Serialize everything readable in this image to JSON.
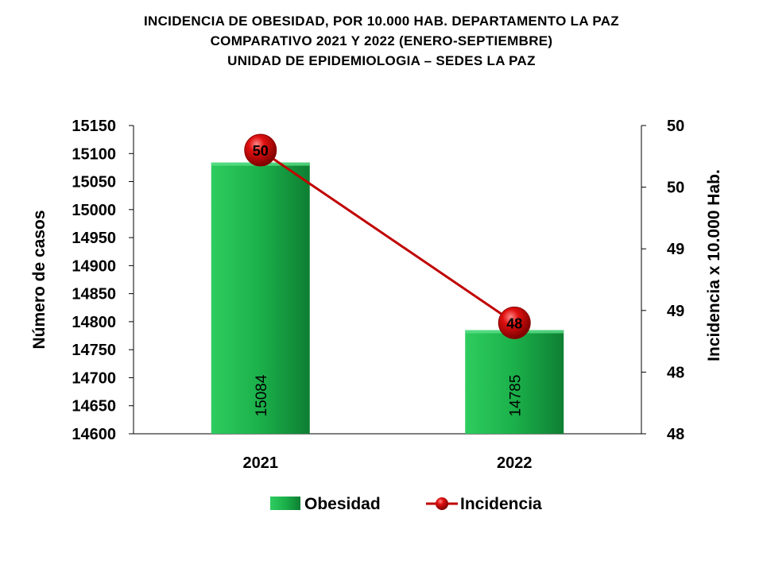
{
  "chart_data": {
    "type": "bar",
    "title": [
      "INCIDENCIA  DE OBESIDAD,  POR 10.000 HAB. DEPARTAMENTO  LA PAZ",
      "COMPARATIVO  2021 Y 2022 (ENERO-SEPTIEMBRE)",
      "UNIDAD DE EPIDEMIOLOGIA – SEDES LA PAZ"
    ],
    "categories": [
      "2021",
      "2022"
    ],
    "series": [
      {
        "name": "Obesidad",
        "type": "bar",
        "axis": "left",
        "color": "#1fa64a",
        "values": [
          15084,
          14785
        ],
        "labels": [
          "15084",
          "14785"
        ]
      },
      {
        "name": "Incidencia",
        "type": "line",
        "axis": "right",
        "color": "#c00000",
        "values": [
          49.8,
          48.4
        ],
        "labels": [
          "50",
          "48"
        ]
      }
    ],
    "ylabel": "Número de casos",
    "y2label": "Incidencia x 10.000 Hab.",
    "ylim": [
      14600,
      15150
    ],
    "yticks": [
      14600,
      14650,
      14700,
      14750,
      14800,
      14850,
      14900,
      14950,
      15000,
      15050,
      15100,
      15150
    ],
    "y2lim": [
      47.5,
      50
    ],
    "y2ticks": [
      47.5,
      48,
      48.5,
      49,
      49.5,
      50
    ],
    "y2tick_labels": [
      "48",
      "48",
      "49",
      "49",
      "50",
      "50"
    ],
    "legend": "bottom"
  }
}
